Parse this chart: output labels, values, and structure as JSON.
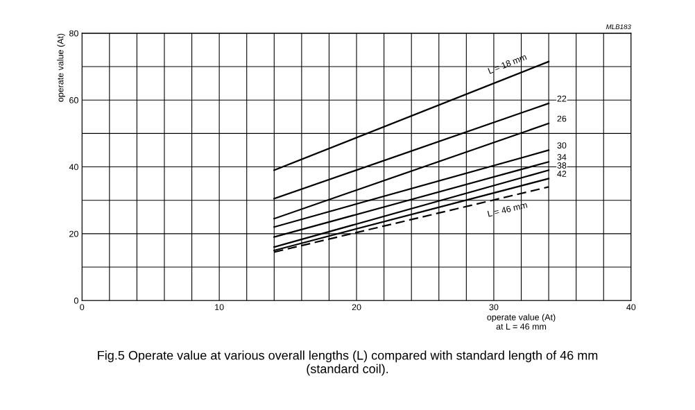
{
  "chart_data": {
    "type": "line",
    "title": "Fig.5 Operate value at various overall lengths (L) compared with standard length of 46 mm\n(standard coil).",
    "xlabel": "operate value (At)\nat L = 46 mm",
    "ylabel": "operate value (At)",
    "annotations": [
      "MLB183"
    ],
    "xlim": [
      0,
      40
    ],
    "ylim": [
      0,
      80
    ],
    "xticks": [
      0,
      {
        "value": 2,
        "label": null
      },
      {
        "value": 4,
        "label": null
      },
      {
        "value": 6,
        "label": null
      },
      {
        "value": 8,
        "label": null
      },
      10,
      {
        "value": 12,
        "label": null
      },
      {
        "value": 14,
        "label": null
      },
      {
        "value": 16,
        "label": null
      },
      {
        "value": 18,
        "label": null
      },
      20,
      {
        "value": 22,
        "label": null
      },
      {
        "value": 24,
        "label": null
      },
      {
        "value": 26,
        "label": null
      },
      {
        "value": 28,
        "label": null
      },
      30,
      {
        "value": 32,
        "label": null
      },
      {
        "value": 34,
        "label": null
      },
      {
        "value": 36,
        "label": null
      },
      {
        "value": 38,
        "label": null
      },
      40
    ],
    "yticks": [
      0,
      {
        "value": 10,
        "label": null
      },
      20,
      {
        "value": 30,
        "label": null
      },
      40,
      {
        "value": 50,
        "label": null
      },
      60,
      {
        "value": 70,
        "label": null
      },
      80
    ],
    "grid": true,
    "marker": "none",
    "x": [
      14,
      34
    ],
    "series": [
      {
        "name": "L = 18 mm",
        "color": "#000000",
        "values": [
          39,
          71.5
        ]
      },
      {
        "name": "22",
        "color": "#000000",
        "values": [
          30.5,
          59
        ]
      },
      {
        "name": "26",
        "color": "#000000",
        "values": [
          24.5,
          53
        ]
      },
      {
        "name": "30",
        "color": "#000000",
        "values": [
          22,
          45
        ]
      },
      {
        "name": "34",
        "color": "#000000",
        "values": [
          19,
          41.5
        ]
      },
      {
        "name": "38",
        "color": "#000000",
        "values": [
          16,
          39
        ]
      },
      {
        "name": "42",
        "color": "#000000",
        "values": [
          15,
          36.5
        ]
      },
      {
        "name": "L = 46 mm",
        "color": "#000000",
        "values": [
          14.5,
          34
        ],
        "line_style": "dashed"
      }
    ]
  }
}
